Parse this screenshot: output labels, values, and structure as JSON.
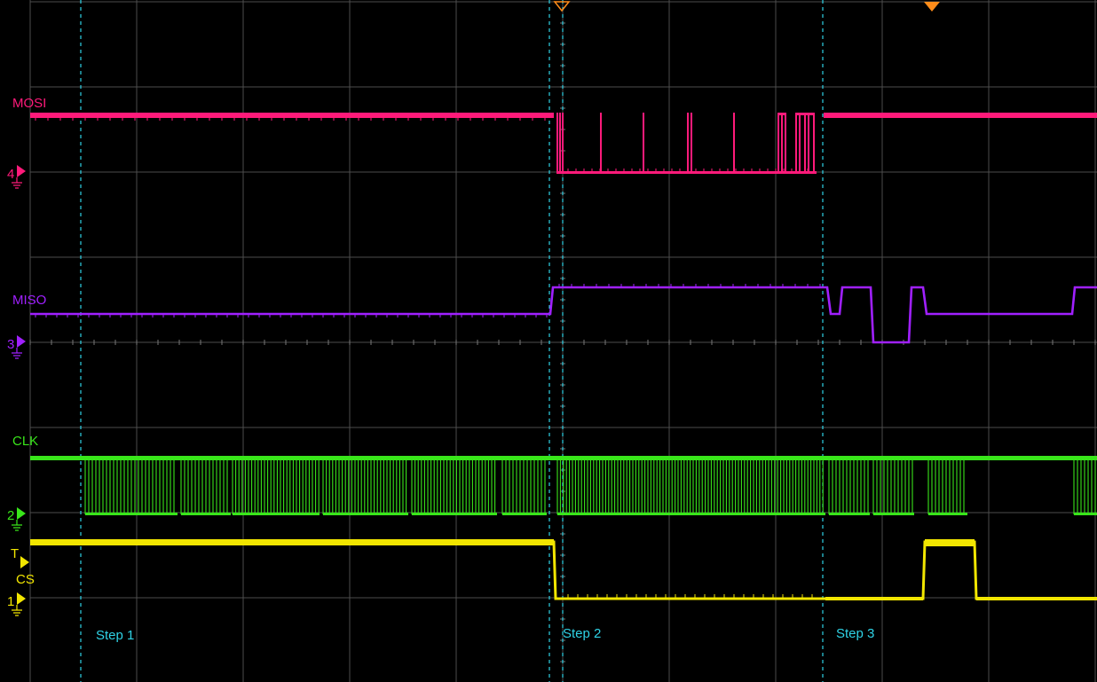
{
  "channels": [
    {
      "id": "mosi",
      "number": "4",
      "label": "MOSI",
      "color": "#ff1a7a"
    },
    {
      "id": "miso",
      "number": "3",
      "label": "MISO",
      "color": "#a020ff"
    },
    {
      "id": "clk",
      "number": "2",
      "label": "CLK",
      "color": "#39e61a"
    },
    {
      "id": "cs",
      "number": "1",
      "label": "CS",
      "color": "#f2e600"
    }
  ],
  "trigger": {
    "marker": "T",
    "color": "#f2e600"
  },
  "markers": [
    {
      "label": "Step 1"
    },
    {
      "label": "Step 2"
    },
    {
      "label": "Step 3"
    }
  ],
  "colors": {
    "background": "#000000",
    "grid": "#555555",
    "cursor": "#2fd3e6",
    "trigger_marker": "#ff8c1a"
  }
}
